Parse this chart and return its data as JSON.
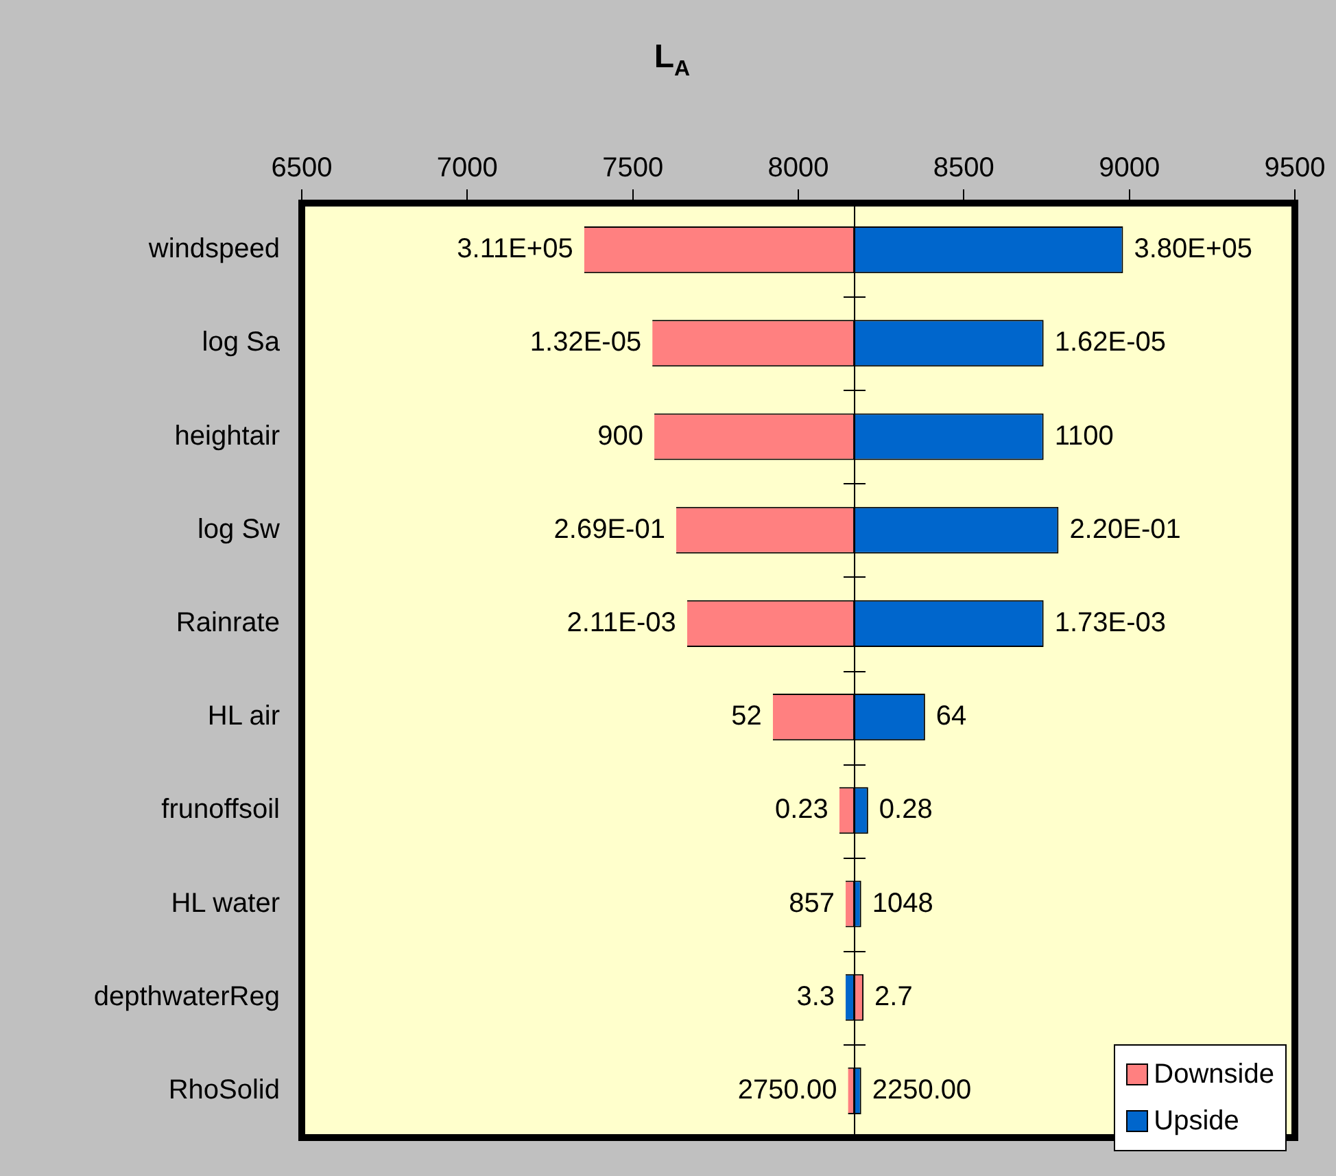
{
  "chart_data": {
    "type": "bar",
    "orientation": "horizontal",
    "title": "L$_{A}$",
    "categories": [
      "windspeed",
      "log Sa",
      "heightair",
      "log Sw",
      "Rainrate",
      "HL air",
      "frunoffsoil",
      "HL water",
      "depthwaterReg",
      "RhoSolid"
    ],
    "series": [
      {
        "name": "Downside",
        "color": "#ff8080",
        "base": [
          8170,
          8170,
          8170,
          8170,
          8170,
          8170,
          8170,
          8170,
          8170,
          8170
        ],
        "values": [
          -817,
          -611,
          -605,
          -539,
          -506,
          -247,
          -46,
          -27,
          27,
          -20
        ]
      },
      {
        "name": "Upside",
        "color": "#0066cc",
        "base": [
          8170,
          8170,
          8170,
          8170,
          8170,
          8170,
          8170,
          8170,
          8170,
          8170
        ],
        "values": [
          811,
          571,
          571,
          616,
          571,
          213,
          41,
          20,
          -27,
          20
        ]
      }
    ],
    "xlim": [
      6500,
      9500
    ],
    "xticks": [
      6500,
      7000,
      7500,
      8000,
      8500,
      9000,
      9500
    ],
    "grid": false,
    "legend": "bottom right",
    "ref_lines": [
      {
        "axis": "x",
        "value": 8170,
        "color": "#000000"
      }
    ],
    "annotations": [
      {
        "text": "3.11E+05",
        "x": 7353,
        "y": "windspeed"
      },
      {
        "text": "3.80E+05",
        "x": 8981,
        "y": "windspeed"
      },
      {
        "text": "1.32E-05",
        "x": 7559,
        "y": "log Sa"
      },
      {
        "text": "1.62E-05",
        "x": 8741,
        "y": "log Sa"
      },
      {
        "text": "900",
        "x": 7565,
        "y": "heightair"
      },
      {
        "text": "1100",
        "x": 8741,
        "y": "heightair"
      },
      {
        "text": "2.69E-01",
        "x": 7631,
        "y": "log Sw"
      },
      {
        "text": "2.20E-01",
        "x": 8786,
        "y": "log Sw"
      },
      {
        "text": "2.11E-03",
        "x": 7664,
        "y": "Rainrate"
      },
      {
        "text": "1.73E-03",
        "x": 8741,
        "y": "Rainrate"
      },
      {
        "text": "52",
        "x": 7923,
        "y": "HL air"
      },
      {
        "text": "64",
        "x": 8383,
        "y": "HL air"
      },
      {
        "text": "0.23",
        "x": 8124,
        "y": "frunoffsoil"
      },
      {
        "text": "0.28",
        "x": 8211,
        "y": "frunoffsoil"
      },
      {
        "text": "857",
        "x": 8143,
        "y": "HL water"
      },
      {
        "text": "1048",
        "x": 8190,
        "y": "HL water"
      },
      {
        "text": "3.3",
        "x": 8143,
        "y": "depthwaterReg"
      },
      {
        "text": "2.7",
        "x": 8197,
        "y": "depthwaterReg"
      },
      {
        "text": "2750.00",
        "x": 8150,
        "y": "RhoSolid"
      },
      {
        "text": "2250.00",
        "x": 8190,
        "y": "RhoSolid"
      }
    ]
  }
}
